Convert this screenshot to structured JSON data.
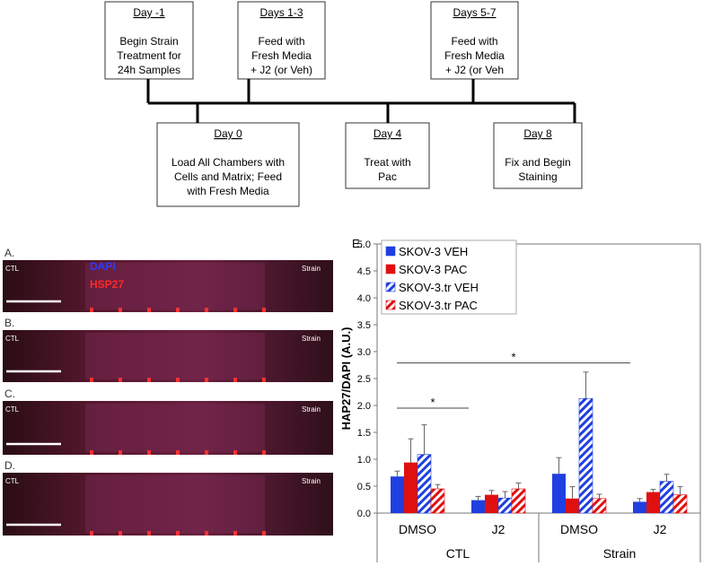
{
  "timeline": {
    "nodes": [
      {
        "title": "Day -1",
        "lines": [
          "Begin Strain",
          "Treatment for",
          "24h Samples"
        ]
      },
      {
        "title": "Days 1-3",
        "lines": [
          "Feed with",
          "Fresh Media",
          "+ J2 (or Veh)"
        ]
      },
      {
        "title": "Days 5-7",
        "lines": [
          "Feed with",
          "Fresh Media",
          "+ J2 (or Veh"
        ]
      },
      {
        "title": "Day 0",
        "lines": [
          "Load All Chambers with",
          "Cells and Matrix; Feed",
          "with Fresh Media"
        ]
      },
      {
        "title": "Day 4",
        "lines": [
          "Treat with",
          "Pac"
        ]
      },
      {
        "title": "Day 8",
        "lines": [
          "Fix and Begin",
          "Staining"
        ]
      }
    ]
  },
  "panels": [
    {
      "label": "A.",
      "left": "CTL",
      "right": "Strain"
    },
    {
      "label": "B.",
      "left": "CTL",
      "right": "Strain"
    },
    {
      "label": "C.",
      "left": "CTL",
      "right": "Strain"
    },
    {
      "label": "D.",
      "left": "CTL",
      "right": "Strain"
    }
  ],
  "stains": [
    "DAPI",
    "HSP27"
  ],
  "chart_data": {
    "type": "bar",
    "panel_label": "E.",
    "ylabel": "HAP27/DAPI (A.U.)",
    "categories": [
      "DMSO",
      "J2",
      "DMSO",
      "J2"
    ],
    "groups": [
      "CTL",
      "Strain"
    ],
    "series": [
      {
        "name": "SKOV-3 VEH",
        "color": "#1f3fe0",
        "pattern": "solid",
        "values": [
          0.68,
          0.24,
          0.73,
          0.21
        ],
        "errors": [
          0.1,
          0.07,
          0.3,
          0.06
        ]
      },
      {
        "name": "SKOV-3 PAC",
        "color": "#e01010",
        "pattern": "solid",
        "values": [
          0.94,
          0.34,
          0.27,
          0.39
        ],
        "errors": [
          0.44,
          0.08,
          0.22,
          0.05
        ]
      },
      {
        "name": "SKOV-3.tr VEH",
        "color": "#1f3fe0",
        "pattern": "hatched",
        "values": [
          1.09,
          0.28,
          2.13,
          0.59
        ],
        "errors": [
          0.55,
          0.12,
          0.49,
          0.13
        ]
      },
      {
        "name": "SKOV-3.tr PAC",
        "color": "#e01010",
        "pattern": "hatched",
        "values": [
          0.45,
          0.45,
          0.27,
          0.34
        ],
        "errors": [
          0.08,
          0.11,
          0.08,
          0.15
        ]
      }
    ],
    "ylim": [
      0,
      5
    ],
    "yticks": [
      {
        "value": 0,
        "label": "0.0"
      },
      {
        "value": 0.5,
        "label": "0.5"
      },
      {
        "value": 1,
        "label": "1.0"
      },
      {
        "value": 1.5,
        "label": "1.5"
      },
      {
        "value": 2,
        "label": "2.0"
      },
      {
        "value": 2.5,
        "label": "2.5"
      },
      {
        "value": 3,
        "label": "3.0"
      },
      {
        "value": 3.5,
        "label": "3.5"
      },
      {
        "value": 4,
        "label": "4.0"
      },
      {
        "value": 4.5,
        "label": "4.5"
      },
      {
        "value": 5,
        "label": "5.0"
      }
    ],
    "legend": "upper left",
    "annotations": [
      {
        "text": "*",
        "y": 1.95,
        "span": [
          0,
          1
        ]
      },
      {
        "text": "*",
        "y": 2.79,
        "span": [
          0,
          3
        ]
      }
    ]
  }
}
